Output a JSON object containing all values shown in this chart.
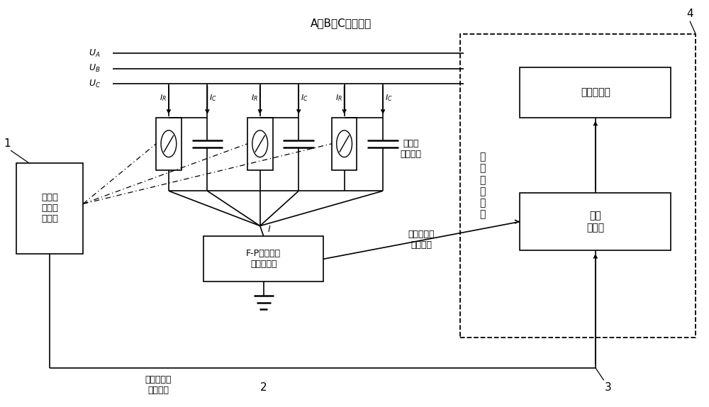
{
  "fig_width": 10.0,
  "fig_height": 5.74,
  "bg_color": "#ffffff",
  "title": "A、B、C三相导线",
  "ua_label": "$U_A$",
  "ub_label": "$U_B$",
  "uc_label": "$U_C$",
  "box1_label": "光纤光\n栅温度\n传感器",
  "box2_label": "F-P光纤泄漏\n电流传感器",
  "box3_label": "光纤\n解调仳",
  "box4_label": "监控计算机",
  "box5_label": "变\n电\n站\n监\n控\n室",
  "label1": "1",
  "label2": "2",
  "label3": "3",
  "label4": "4",
  "text_equiv": "避雷器\n等效电路",
  "text_signal1": "温度光信号\n光纤传输",
  "text_signal2": "电路光信号\n光纤传输",
  "text_I": "$I$"
}
